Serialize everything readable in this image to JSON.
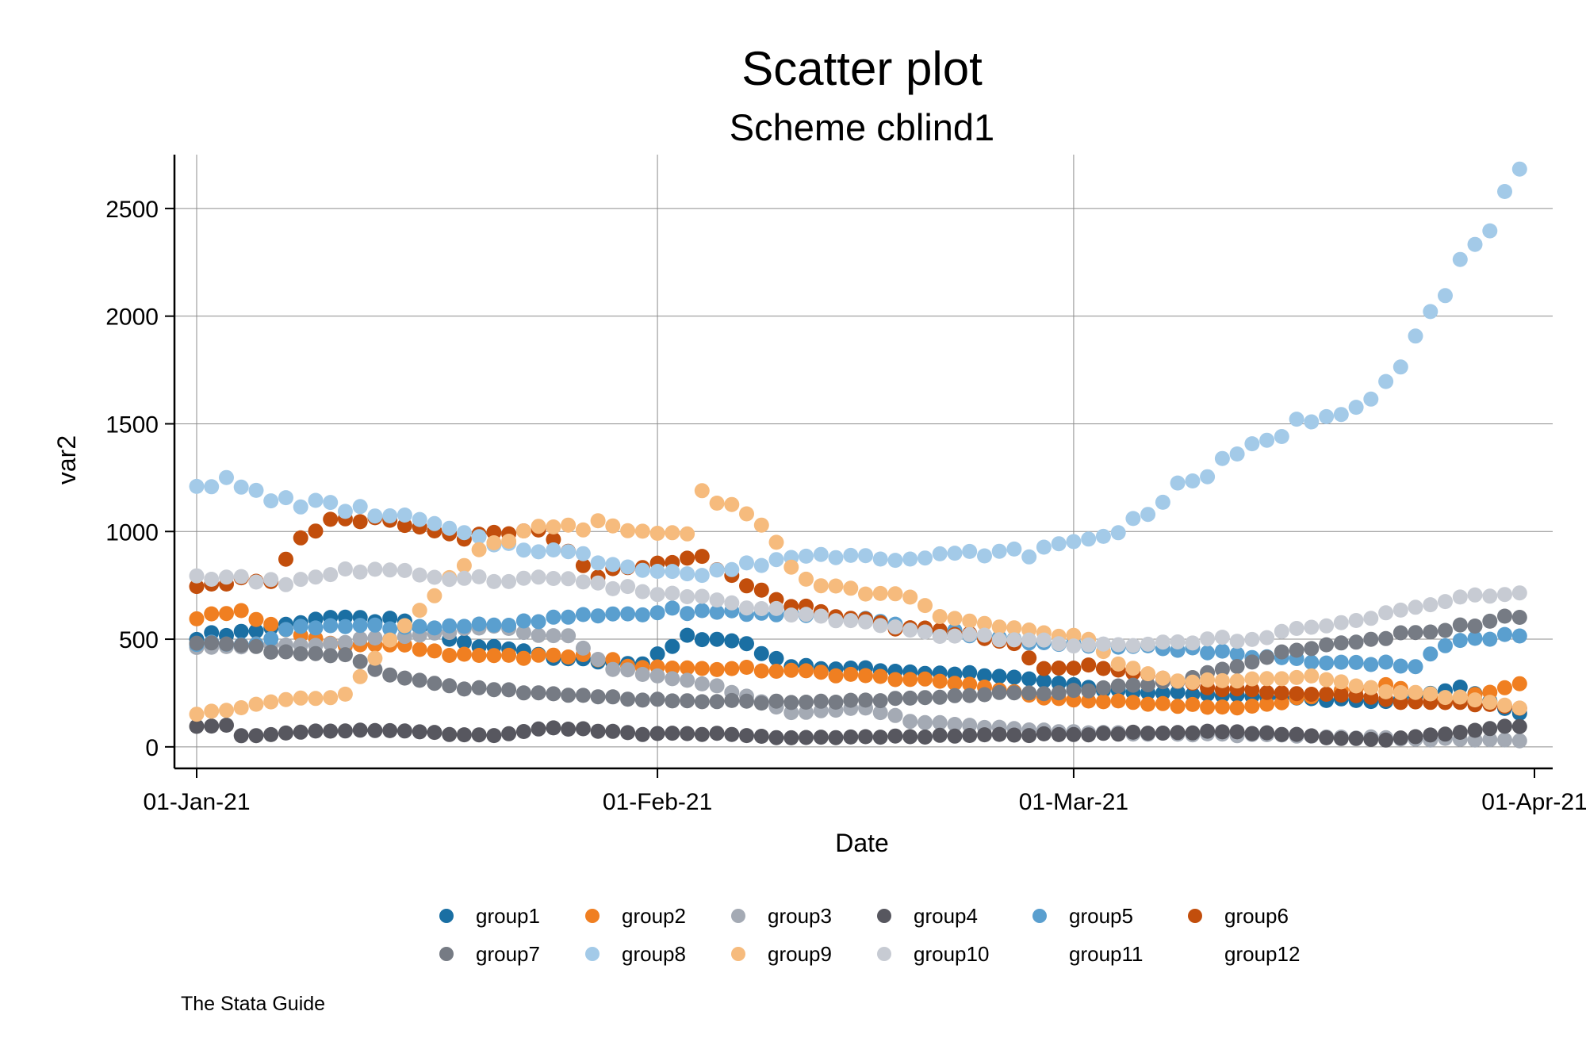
{
  "chart_data": {
    "type": "scatter",
    "title": "Scatter plot",
    "subtitle": "Scheme cblind1",
    "xlabel": "Date",
    "ylabel": "var2",
    "note": "The Stata Guide",
    "x_axis": {
      "type": "date",
      "start": "01-Jan-21",
      "end": "31-Mar-21",
      "range": [
        "01-Jan-21",
        "01-Apr-21"
      ],
      "ticks": [
        "01-Jan-21",
        "01-Feb-21",
        "01-Mar-21",
        "01-Apr-21"
      ]
    },
    "ylim": [
      -100,
      2750
    ],
    "y_ticks": [
      0,
      500,
      1000,
      1500,
      2000,
      2500
    ],
    "grid": true,
    "legend_position": "bottom",
    "series": [
      {
        "name": "group1",
        "color": "#1a6fa3",
        "anchors": [
          [
            0,
            510
          ],
          [
            4,
            540
          ],
          [
            8,
            600
          ],
          [
            14,
            580
          ],
          [
            18,
            480
          ],
          [
            24,
            420
          ],
          [
            30,
            380
          ],
          [
            33,
            520
          ],
          [
            37,
            470
          ],
          [
            40,
            370
          ],
          [
            45,
            360
          ],
          [
            52,
            340
          ],
          [
            58,
            300
          ],
          [
            62,
            260
          ],
          [
            70,
            240
          ],
          [
            80,
            210
          ],
          [
            85,
            280
          ],
          [
            89,
            150
          ]
        ]
      },
      {
        "name": "group2",
        "color": "#f07f21",
        "anchors": [
          [
            0,
            600
          ],
          [
            3,
            630
          ],
          [
            5,
            560
          ],
          [
            9,
            480
          ],
          [
            14,
            470
          ],
          [
            18,
            420
          ],
          [
            26,
            420
          ],
          [
            30,
            370
          ],
          [
            38,
            360
          ],
          [
            45,
            330
          ],
          [
            52,
            290
          ],
          [
            58,
            220
          ],
          [
            70,
            180
          ],
          [
            80,
            290
          ],
          [
            84,
            210
          ],
          [
            89,
            290
          ]
        ]
      },
      {
        "name": "group3",
        "color": "#a4aab4",
        "anchors": [
          [
            0,
            470
          ],
          [
            4,
            470
          ],
          [
            8,
            470
          ],
          [
            12,
            500
          ],
          [
            16,
            520
          ],
          [
            20,
            560
          ],
          [
            25,
            510
          ],
          [
            28,
            360
          ],
          [
            34,
            300
          ],
          [
            37,
            230
          ],
          [
            40,
            160
          ],
          [
            45,
            180
          ],
          [
            48,
            120
          ],
          [
            52,
            100
          ],
          [
            58,
            70
          ],
          [
            64,
            60
          ],
          [
            70,
            55
          ],
          [
            80,
            40
          ],
          [
            89,
            30
          ]
        ]
      },
      {
        "name": "group4",
        "color": "#57575f",
        "anchors": [
          [
            0,
            95
          ],
          [
            2,
            100
          ],
          [
            3,
            50
          ],
          [
            8,
            70
          ],
          [
            13,
            80
          ],
          [
            17,
            60
          ],
          [
            20,
            50
          ],
          [
            24,
            90
          ],
          [
            30,
            60
          ],
          [
            36,
            60
          ],
          [
            40,
            40
          ],
          [
            50,
            50
          ],
          [
            60,
            60
          ],
          [
            70,
            70
          ],
          [
            80,
            30
          ],
          [
            89,
            100
          ]
        ]
      },
      {
        "name": "group5",
        "color": "#5a9fcf",
        "anchors": [
          [
            0,
            480
          ],
          [
            4,
            480
          ],
          [
            7,
            560
          ],
          [
            11,
            560
          ],
          [
            16,
            560
          ],
          [
            20,
            560
          ],
          [
            25,
            600
          ],
          [
            29,
            620
          ],
          [
            32,
            630
          ],
          [
            38,
            620
          ],
          [
            44,
            600
          ],
          [
            48,
            550
          ],
          [
            53,
            520
          ],
          [
            58,
            470
          ],
          [
            62,
            470
          ],
          [
            67,
            450
          ],
          [
            71,
            420
          ],
          [
            75,
            400
          ],
          [
            79,
            390
          ],
          [
            82,
            380
          ],
          [
            84,
            480
          ],
          [
            89,
            520
          ]
        ]
      },
      {
        "name": "group6",
        "color": "#c24e0c",
        "anchors": [
          [
            0,
            760
          ],
          [
            5,
            780
          ],
          [
            7,
            950
          ],
          [
            9,
            1040
          ],
          [
            13,
            1050
          ],
          [
            16,
            1000
          ],
          [
            19,
            970
          ],
          [
            23,
            1000
          ],
          [
            27,
            800
          ],
          [
            31,
            840
          ],
          [
            34,
            880
          ],
          [
            37,
            740
          ],
          [
            40,
            660
          ],
          [
            44,
            600
          ],
          [
            47,
            560
          ],
          [
            52,
            520
          ],
          [
            55,
            480
          ],
          [
            57,
            360
          ],
          [
            60,
            380
          ],
          [
            63,
            350
          ],
          [
            68,
            270
          ],
          [
            72,
            260
          ],
          [
            77,
            240
          ],
          [
            81,
            210
          ],
          [
            86,
            200
          ],
          [
            89,
            180
          ]
        ]
      },
      {
        "name": "group7",
        "color": "#767b84",
        "anchors": [
          [
            0,
            470
          ],
          [
            2,
            490
          ],
          [
            5,
            450
          ],
          [
            10,
            420
          ],
          [
            13,
            330
          ],
          [
            18,
            270
          ],
          [
            23,
            250
          ],
          [
            30,
            220
          ],
          [
            36,
            210
          ],
          [
            42,
            210
          ],
          [
            46,
            220
          ],
          [
            50,
            230
          ],
          [
            55,
            250
          ],
          [
            60,
            260
          ],
          [
            62,
            280
          ],
          [
            66,
            300
          ],
          [
            70,
            380
          ],
          [
            74,
            450
          ],
          [
            78,
            490
          ],
          [
            82,
            540
          ],
          [
            86,
            560
          ],
          [
            89,
            610
          ]
        ]
      },
      {
        "name": "group8",
        "color": "#a3cae8",
        "anchors": [
          [
            0,
            1230
          ],
          [
            2,
            1230
          ],
          [
            5,
            1150
          ],
          [
            10,
            1110
          ],
          [
            15,
            1050
          ],
          [
            19,
            960
          ],
          [
            25,
            900
          ],
          [
            28,
            850
          ],
          [
            34,
            800
          ],
          [
            40,
            880
          ],
          [
            45,
            900
          ],
          [
            48,
            870
          ],
          [
            52,
            900
          ],
          [
            56,
            900
          ],
          [
            59,
            950
          ],
          [
            62,
            1000
          ],
          [
            66,
            1200
          ],
          [
            70,
            1350
          ],
          [
            74,
            1500
          ],
          [
            78,
            1600
          ],
          [
            80,
            1700
          ],
          [
            82,
            1900
          ],
          [
            84,
            2100
          ],
          [
            86,
            2350
          ],
          [
            88,
            2530
          ],
          [
            89,
            2640
          ]
        ]
      },
      {
        "name": "group9",
        "color": "#f6bb7d",
        "anchors": [
          [
            0,
            150
          ],
          [
            5,
            210
          ],
          [
            10,
            240
          ],
          [
            11,
            330
          ],
          [
            13,
            500
          ],
          [
            16,
            700
          ],
          [
            19,
            900
          ],
          [
            22,
            1000
          ],
          [
            27,
            1030
          ],
          [
            29,
            990
          ],
          [
            33,
            1000
          ],
          [
            34,
            1180
          ],
          [
            37,
            1100
          ],
          [
            39,
            940
          ],
          [
            41,
            760
          ],
          [
            45,
            720
          ],
          [
            48,
            700
          ],
          [
            50,
            600
          ],
          [
            55,
            550
          ],
          [
            60,
            500
          ],
          [
            62,
            380
          ],
          [
            66,
            300
          ],
          [
            70,
            310
          ],
          [
            75,
            330
          ],
          [
            80,
            260
          ],
          [
            85,
            230
          ],
          [
            89,
            180
          ]
        ]
      },
      {
        "name": "group10",
        "color": "#c7cbd3",
        "anchors": [
          [
            0,
            780
          ],
          [
            3,
            790
          ],
          [
            6,
            760
          ],
          [
            10,
            820
          ],
          [
            15,
            800
          ],
          [
            20,
            780
          ],
          [
            25,
            780
          ],
          [
            30,
            720
          ],
          [
            34,
            690
          ],
          [
            38,
            640
          ],
          [
            42,
            600
          ],
          [
            46,
            560
          ],
          [
            50,
            520
          ],
          [
            55,
            500
          ],
          [
            60,
            470
          ],
          [
            65,
            480
          ],
          [
            70,
            500
          ],
          [
            75,
            550
          ],
          [
            80,
            620
          ],
          [
            85,
            690
          ],
          [
            89,
            710
          ]
        ]
      }
    ],
    "legend": [
      {
        "name": "group1",
        "color": "#1a6fa3"
      },
      {
        "name": "group2",
        "color": "#f07f21"
      },
      {
        "name": "group3",
        "color": "#a4aab4"
      },
      {
        "name": "group4",
        "color": "#57575f"
      },
      {
        "name": "group5",
        "color": "#5a9fcf"
      },
      {
        "name": "group6",
        "color": "#c24e0c"
      },
      {
        "name": "group7",
        "color": "#767b84"
      },
      {
        "name": "group8",
        "color": "#a3cae8"
      },
      {
        "name": "group9",
        "color": "#f6bb7d"
      },
      {
        "name": "group10",
        "color": "#c7cbd3"
      },
      {
        "name": "group11",
        "color": null
      },
      {
        "name": "group12",
        "color": null
      }
    ]
  }
}
